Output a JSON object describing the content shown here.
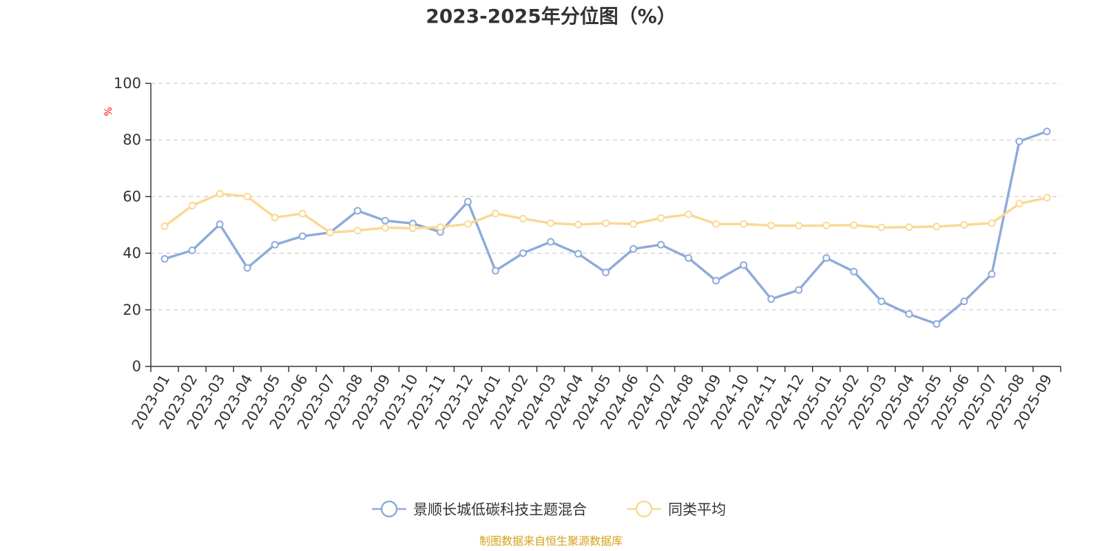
{
  "chart_data": {
    "type": "line",
    "title": "2023-2025年分位图（%）",
    "ylabel": "%",
    "xlabel": "",
    "ylim": [
      0,
      100
    ],
    "yticks": [
      "0",
      "20",
      "40",
      "60",
      "80",
      "100"
    ],
    "grid": true,
    "legend_position": "bottom-center",
    "categories": [
      "2023-01",
      "2023-02",
      "2023-03",
      "2023-04",
      "2023-05",
      "2023-06",
      "2023-07",
      "2023-08",
      "2023-09",
      "2023-10",
      "2023-11",
      "2023-12",
      "2024-01",
      "2024-02",
      "2024-03",
      "2024-04",
      "2024-05",
      "2024-06",
      "2024-07",
      "2024-08",
      "2024-09",
      "2024-10",
      "2024-11",
      "2024-12",
      "2025-01",
      "2025-02",
      "2025-03",
      "2025-04",
      "2025-05",
      "2025-06",
      "2025-07",
      "2025-08",
      "2025-09"
    ],
    "series": [
      {
        "name": "景顺长城低碳科技主题混合",
        "color": "#8eaadb",
        "values": [
          38.0,
          41.0,
          50.2,
          34.8,
          43.0,
          46.0,
          47.3,
          55.0,
          51.5,
          50.5,
          47.5,
          58.2,
          33.8,
          40.0,
          44.0,
          39.8,
          33.2,
          41.5,
          43.0,
          38.3,
          30.3,
          35.8,
          23.8,
          27.0,
          38.3,
          33.5,
          23.0,
          18.5,
          15.0,
          23.0,
          32.6,
          79.5,
          83.0
        ]
      },
      {
        "name": "同类平均",
        "color": "#fbd893",
        "values": [
          49.5,
          56.8,
          61.0,
          60.0,
          52.6,
          54.0,
          47.3,
          48.0,
          49.0,
          48.8,
          49.2,
          50.3,
          54.0,
          52.2,
          50.6,
          50.1,
          50.6,
          50.3,
          52.4,
          53.7,
          50.3,
          50.3,
          49.8,
          49.7,
          49.8,
          49.9,
          49.1,
          49.2,
          49.4,
          50.0,
          50.6,
          57.5,
          59.6
        ]
      }
    ],
    "axis_color": "#333333",
    "grid_color": "#cccccc",
    "ylabel_color": "#ff0000",
    "source_text": "制图数据来自恒生聚源数据库",
    "source_color": "#d4a017"
  }
}
